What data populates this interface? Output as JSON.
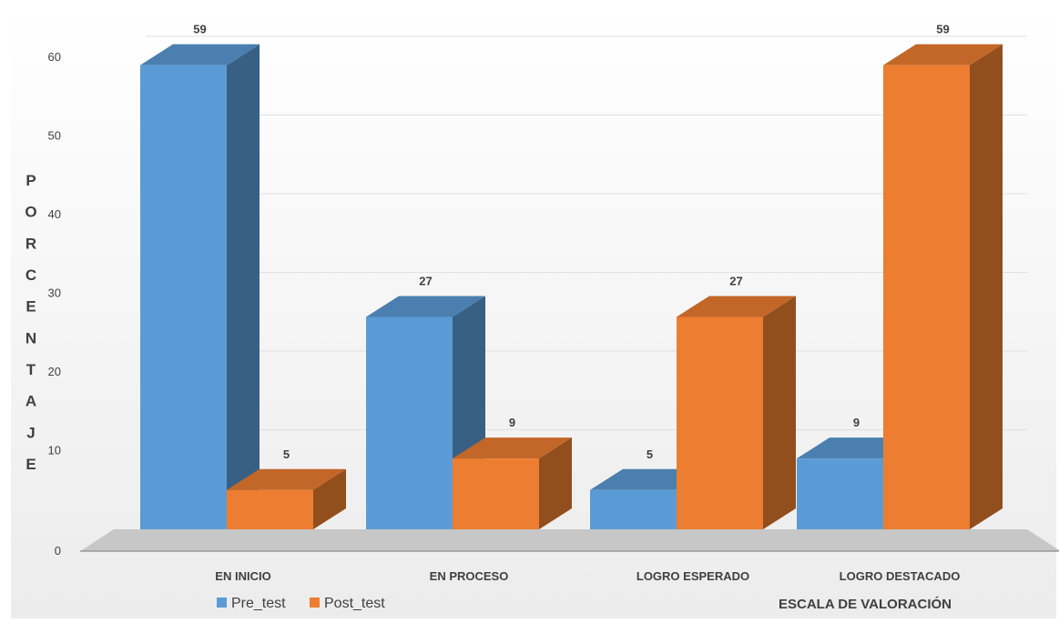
{
  "chart_data": {
    "type": "bar",
    "categories": [
      "EN INICIO",
      "EN PROCESO",
      "LOGRO  ESPERADO",
      "LOGRO DESTACADO"
    ],
    "series": [
      {
        "name": "Pre_test",
        "values": [
          59,
          27,
          5,
          9
        ],
        "color": "#5b9bd5"
      },
      {
        "name": "Post_test",
        "values": [
          5,
          9,
          27,
          59
        ],
        "color": "#ed7d31"
      }
    ],
    "data_labels": {
      "Pre_test": [
        "59",
        "27",
        "5",
        "9"
      ],
      "Post_test": [
        "5",
        "9",
        "27",
        "59"
      ]
    },
    "title": "",
    "xlabel": "ESCALA DE VALORACIÓN",
    "ylabel": "PORCENTAJE",
    "ylim": [
      0,
      60
    ],
    "yticks": [
      "0",
      "10",
      "20",
      "30",
      "40",
      "50",
      "60"
    ],
    "grid": true,
    "legend_position": "bottom-left",
    "style": "3d-column"
  }
}
